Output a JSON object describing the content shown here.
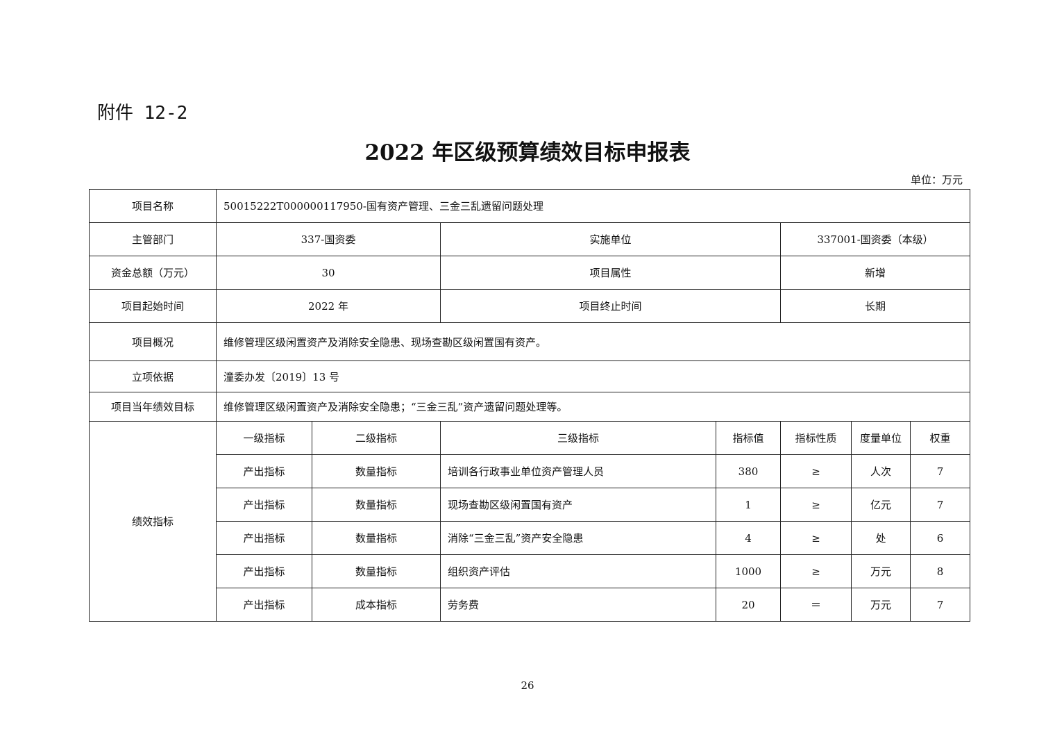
{
  "attachment_label": "附件 12-2",
  "title": "2022 年区级预算绩效目标申报表",
  "unit_note": "单位：万元",
  "project": {
    "name_label": "项目名称",
    "name_value": "50015222T000000117950-国有资产管理、三金三乱遗留问题处理",
    "dept_label": "主管部门",
    "dept_value": "337-国资委",
    "impl_label": "实施单位",
    "impl_value": "337001-国资委（本级）",
    "funds_label": "资金总额（万元）",
    "funds_value": "30",
    "attr_label": "项目属性",
    "attr_value": "新增",
    "start_label": "项目起始时间",
    "start_value": "2022 年",
    "end_label": "项目终止时间",
    "end_value": "长期",
    "overview_label": "项目概况",
    "overview_value": "维修管理区级闲置资产及消除安全隐患、现场查勘区级闲置国有资产。",
    "basis_label": "立项依据",
    "basis_value": "潼委办发〔2019〕13 号",
    "goal_label": "项目当年绩效目标",
    "goal_value": "维修管理区级闲置资产及消除安全隐患；“三金三乱”资产遗留问题处理等。"
  },
  "indicators": {
    "section_label": "绩效指标",
    "headers": [
      "一级指标",
      "二级指标",
      "三级指标",
      "指标值",
      "指标性质",
      "度量单位",
      "权重"
    ],
    "rows": [
      [
        "产出指标",
        "数量指标",
        "培训各行政事业单位资产管理人员",
        "380",
        "≥",
        "人次",
        "7"
      ],
      [
        "产出指标",
        "数量指标",
        "现场查勘区级闲置国有资产",
        "1",
        "≥",
        "亿元",
        "7"
      ],
      [
        "产出指标",
        "数量指标",
        "消除“三金三乱”资产安全隐患",
        "4",
        "≥",
        "处",
        "6"
      ],
      [
        "产出指标",
        "数量指标",
        "组织资产评估",
        "1000",
        "≥",
        "万元",
        "8"
      ],
      [
        "产出指标",
        "成本指标",
        "劳务费",
        "20",
        "＝",
        "万元",
        "7"
      ]
    ]
  },
  "page_number": "26"
}
